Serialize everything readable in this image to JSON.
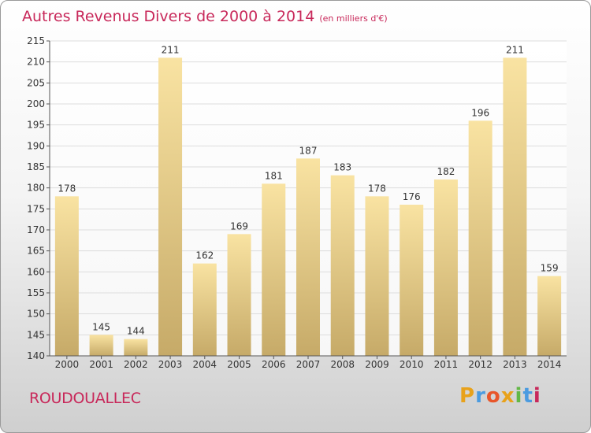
{
  "title": "Autres Revenus Divers de 2000 à 2014",
  "unit": "(en milliers d'€)",
  "commune": "ROUDOUALLEC",
  "logo": {
    "text": "Proxiti",
    "colors": [
      "#e8a21b",
      "#4a9be0",
      "#e8562a",
      "#e8a21b",
      "#62b845",
      "#4a9be0",
      "#c8285a"
    ]
  },
  "colors": {
    "title": "#c8285a",
    "bar_light": "#f9e3a2",
    "bar_dark": "#c6aa68",
    "grid": "#dddddd",
    "axis": "#555555"
  },
  "chart_data": {
    "type": "bar",
    "title": "Autres Revenus Divers de 2000 à 2014",
    "subtitle": "(en milliers d'€)",
    "xlabel": "",
    "ylabel": "",
    "categories": [
      "2000",
      "2001",
      "2002",
      "2003",
      "2004",
      "2005",
      "2006",
      "2007",
      "2008",
      "2009",
      "2010",
      "2011",
      "2012",
      "2013",
      "2014"
    ],
    "values": [
      178,
      145,
      144,
      211,
      162,
      169,
      181,
      187,
      183,
      178,
      176,
      182,
      196,
      211,
      159
    ],
    "ylim": [
      140,
      215
    ],
    "yticks": [
      140,
      145,
      150,
      155,
      160,
      165,
      170,
      175,
      180,
      185,
      190,
      195,
      200,
      205,
      210,
      215
    ],
    "grid": true,
    "data_labels": true
  }
}
